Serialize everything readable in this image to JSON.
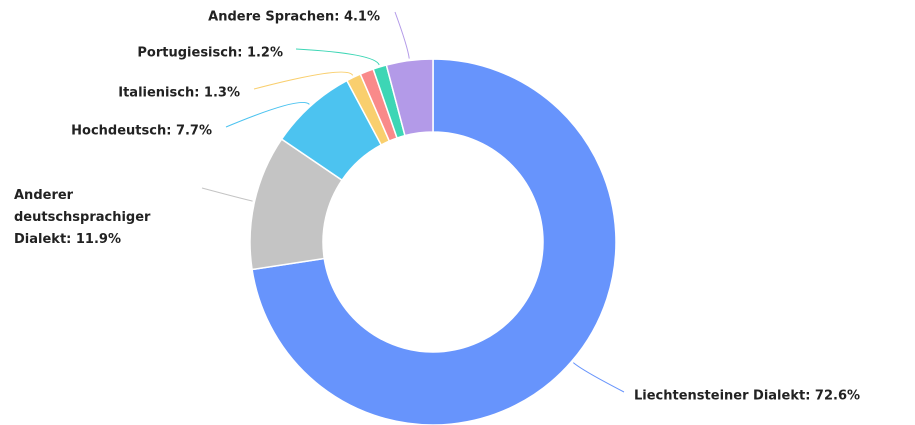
{
  "chart_data": {
    "type": "donut",
    "categories": [
      "Liechtensteiner Dialekt: 72.6%",
      "Anderer deutschsprachiger Dialekt: 11.9%",
      "Hochdeutsch: 7.7%",
      "Italienisch: 1.3%",
      null,
      "Portugiesisch: 1.2%",
      "Andere Sprachen: 4.1%"
    ],
    "values": [
      72.6,
      11.9,
      7.7,
      1.3,
      1.2,
      1.2,
      4.1
    ],
    "colors": [
      "#6794fc",
      "#c4c4c4",
      "#4cc3f0",
      "#f9cf6e",
      "#f98a8a",
      "#3dd6b5",
      "#b39ae8"
    ]
  }
}
